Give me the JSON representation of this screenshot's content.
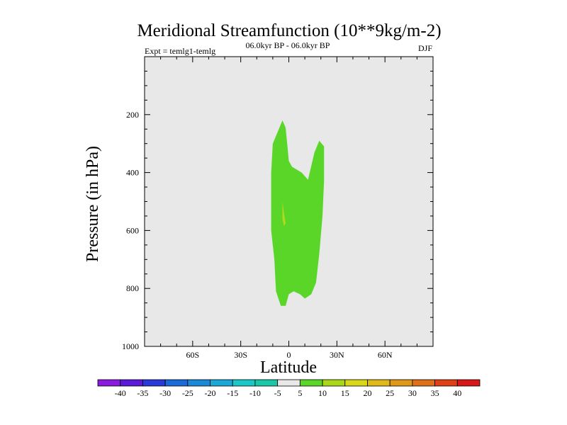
{
  "chart_data": {
    "type": "contour",
    "title": "Meridional Streamfunction (10**9kg/m-2)",
    "subtitle_left": "Expt = temlg1-temlg",
    "subtitle_center": "06.0kyr BP - 06.0kyr BP",
    "subtitle_right": "DJF",
    "xlabel": "Latitude",
    "ylabel": "Pressure (in hPa)",
    "xlim": [
      -90,
      90
    ],
    "ylim": [
      0,
      1000
    ],
    "y_inverted": true,
    "x_ticks": [
      {
        "value": -60,
        "label": "60S"
      },
      {
        "value": -30,
        "label": "30S"
      },
      {
        "value": 0,
        "label": "0"
      },
      {
        "value": 30,
        "label": "30N"
      },
      {
        "value": 60,
        "label": "60N"
      }
    ],
    "y_ticks": [
      {
        "value": 200,
        "label": "200"
      },
      {
        "value": 400,
        "label": "400"
      },
      {
        "value": 600,
        "label": "600"
      },
      {
        "value": 800,
        "label": "800"
      },
      {
        "value": 1000,
        "label": "1000"
      }
    ],
    "background_color": "#e8e8e8",
    "filled_regions": [
      {
        "name": "5 to 10",
        "color": "#5ad629",
        "polygon": [
          [
            -4,
            220
          ],
          [
            -2,
            245
          ],
          [
            -1,
            300
          ],
          [
            0,
            360
          ],
          [
            2,
            380
          ],
          [
            8,
            400
          ],
          [
            12,
            425
          ],
          [
            16,
            330
          ],
          [
            19,
            290
          ],
          [
            22,
            310
          ],
          [
            22,
            430
          ],
          [
            21,
            550
          ],
          [
            19,
            680
          ],
          [
            17,
            780
          ],
          [
            14,
            820
          ],
          [
            10,
            835
          ],
          [
            7,
            820
          ],
          [
            3,
            810
          ],
          [
            0,
            820
          ],
          [
            -2,
            860
          ],
          [
            -5,
            860
          ],
          [
            -8,
            810
          ],
          [
            -9,
            700
          ],
          [
            -11,
            600
          ],
          [
            -11,
            400
          ],
          [
            -10,
            300
          ]
        ]
      },
      {
        "name": "10 to 15",
        "color": "#b4d81c",
        "polygon": [
          [
            -4,
            500
          ],
          [
            -3,
            540
          ],
          [
            -2,
            575
          ],
          [
            -3,
            585
          ],
          [
            -4,
            560
          ]
        ]
      }
    ],
    "colorbar": {
      "labels": [
        "-40",
        "-35",
        "-30",
        "-25",
        "-20",
        "-15",
        "-10",
        "-5",
        "5",
        "10",
        "15",
        "20",
        "25",
        "30",
        "35",
        "40"
      ],
      "colors": [
        "#8a1ae0",
        "#5a1ad8",
        "#2a3ad8",
        "#1a6ad8",
        "#1a8ad8",
        "#1aa8d8",
        "#1ac8c8",
        "#1ac8a8",
        "#e8e8e8",
        "#5ad629",
        "#a8d818",
        "#d8d818",
        "#e0b818",
        "#e09818",
        "#e07018",
        "#e04018",
        "#d81818"
      ]
    }
  }
}
